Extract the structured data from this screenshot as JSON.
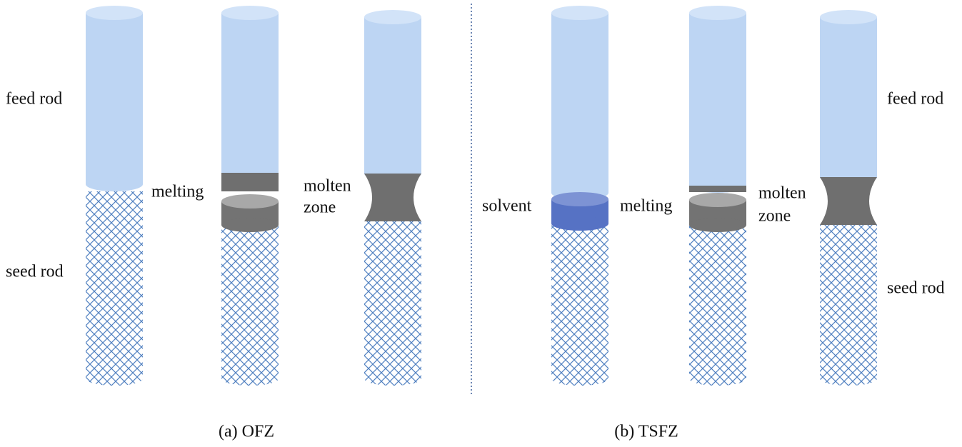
{
  "panels": [
    {
      "caption": "(a) OFZ",
      "feed_rod": "feed rod",
      "seed_rod": "seed rod",
      "melting": "melting",
      "molten_zone": [
        "molten",
        "zone"
      ]
    },
    {
      "caption": "(b) TSFZ",
      "feed_rod": "feed rod",
      "seed_rod": "seed rod",
      "solvent": "solvent",
      "melting": "melting",
      "molten_zone": [
        "molten",
        "zone"
      ]
    }
  ]
}
